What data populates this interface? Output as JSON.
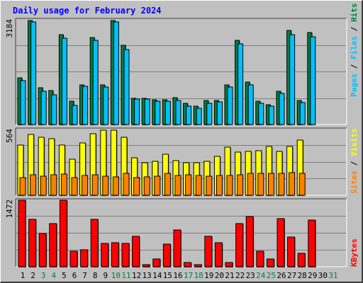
{
  "title": "Daily usage for February 2024",
  "colors": {
    "background": "#c0c0c0",
    "panel": "#c0c0c0",
    "hits": "#008040",
    "files": "#00c0ff",
    "pages": "#00c0ff",
    "visits": "#ffff00",
    "sites": "#ff8000",
    "kbytes": "#ff0000",
    "title": "#0000ff",
    "weekend_day": "#008040",
    "weekday": "#000000"
  },
  "chart_data": [
    {
      "type": "bar",
      "panel": "hits-files-pages",
      "categories": [
        "1",
        "2",
        "3",
        "4",
        "5",
        "6",
        "7",
        "8",
        "9",
        "10",
        "11",
        "12",
        "13",
        "14",
        "15",
        "16",
        "17",
        "18",
        "19",
        "20",
        "21",
        "22",
        "23",
        "24",
        "25",
        "26",
        "27",
        "28",
        "29",
        "30",
        "31"
      ],
      "ylim": [
        0,
        3184
      ],
      "max_label": "3184",
      "legend": [
        {
          "key": "hits",
          "label": "Hits"
        },
        {
          "key": "files",
          "label": "Files"
        },
        {
          "key": "pages",
          "label": "Pages"
        }
      ],
      "series": [
        {
          "name": "Hits",
          "values": [
            1420,
            3170,
            1110,
            1030,
            2730,
            700,
            1210,
            2650,
            1210,
            3170,
            2400,
            800,
            800,
            760,
            750,
            810,
            640,
            550,
            740,
            740,
            1200,
            2560,
            1300,
            720,
            600,
            1010,
            2860,
            730,
            2790,
            0,
            0
          ]
        },
        {
          "name": "Files",
          "values": [
            1330,
            3120,
            1020,
            910,
            2630,
            590,
            1160,
            2570,
            1130,
            3120,
            2290,
            770,
            770,
            700,
            710,
            730,
            570,
            500,
            640,
            680,
            1140,
            2460,
            1200,
            640,
            560,
            940,
            2740,
            660,
            2670,
            0,
            0
          ]
        }
      ]
    },
    {
      "type": "bar",
      "panel": "visits-sites",
      "categories": [
        "1",
        "2",
        "3",
        "4",
        "5",
        "6",
        "7",
        "8",
        "9",
        "10",
        "11",
        "12",
        "13",
        "14",
        "15",
        "16",
        "17",
        "18",
        "19",
        "20",
        "21",
        "22",
        "23",
        "24",
        "25",
        "26",
        "27",
        "28",
        "29",
        "30",
        "31"
      ],
      "ylim": [
        0,
        564
      ],
      "max_label": "564",
      "legend": [
        {
          "key": "sites",
          "label": "Sites"
        },
        {
          "key": "visits",
          "label": "Visits"
        }
      ],
      "series": [
        {
          "name": "Visits",
          "values": [
            430,
            520,
            495,
            485,
            430,
            310,
            450,
            525,
            560,
            560,
            500,
            320,
            280,
            290,
            350,
            300,
            280,
            280,
            290,
            335,
            410,
            370,
            375,
            380,
            420,
            375,
            420,
            470,
            0,
            0,
            0
          ]
        },
        {
          "name": "Sites",
          "values": [
            150,
            175,
            165,
            175,
            180,
            150,
            170,
            175,
            165,
            160,
            190,
            150,
            160,
            165,
            190,
            170,
            175,
            170,
            165,
            170,
            170,
            175,
            185,
            185,
            190,
            185,
            195,
            185,
            0,
            0,
            0
          ]
        }
      ]
    },
    {
      "type": "bar",
      "panel": "kbytes",
      "categories": [
        "1",
        "2",
        "3",
        "4",
        "5",
        "6",
        "7",
        "8",
        "9",
        "10",
        "11",
        "12",
        "13",
        "14",
        "15",
        "16",
        "17",
        "18",
        "19",
        "20",
        "21",
        "22",
        "23",
        "24",
        "25",
        "26",
        "27",
        "28",
        "29",
        "30",
        "31"
      ],
      "ylim": [
        0,
        1472
      ],
      "max_label": "1472",
      "legend": [
        {
          "key": "kbytes",
          "label": "KBytes"
        }
      ],
      "series": [
        {
          "name": "KBytes",
          "values": [
            1480,
            1050,
            740,
            950,
            1480,
            350,
            370,
            1050,
            510,
            540,
            520,
            670,
            50,
            170,
            500,
            820,
            90,
            50,
            680,
            530,
            90,
            950,
            1110,
            350,
            180,
            1070,
            660,
            300,
            1040,
            0,
            0
          ]
        }
      ]
    }
  ],
  "x_axis": {
    "labels": [
      "1",
      "2",
      "3",
      "4",
      "5",
      "6",
      "7",
      "8",
      "9",
      "10",
      "11",
      "12",
      "13",
      "14",
      "15",
      "16",
      "17",
      "18",
      "19",
      "20",
      "21",
      "22",
      "23",
      "24",
      "25",
      "26",
      "27",
      "28",
      "29",
      "30",
      "31"
    ],
    "weekend_days": [
      3,
      4,
      10,
      11,
      17,
      18,
      24,
      25,
      31
    ]
  }
}
